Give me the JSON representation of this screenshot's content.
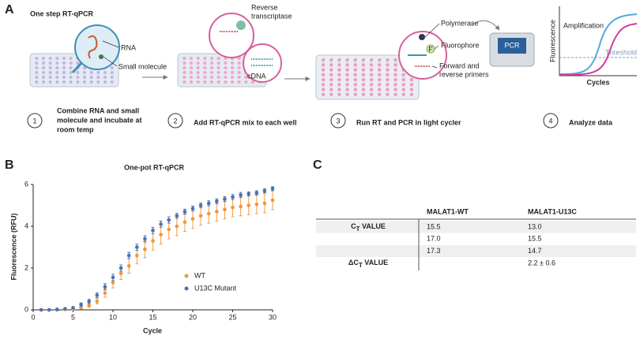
{
  "panel_a": {
    "label": "A",
    "title": "One step RT-qPCR",
    "step1": {
      "number": "1",
      "lines": [
        "Combine RNA and small",
        "molecule and incubate at",
        "room temp"
      ],
      "callouts": [
        "RNA",
        "Small molecule"
      ]
    },
    "step2": {
      "number": "2",
      "text": "Add RT-qPCR mix to each well",
      "callouts": [
        [
          "Reverse",
          "transcriptase"
        ],
        "cDNA"
      ]
    },
    "step3": {
      "number": "3",
      "text": "Run RT and PCR in light cycler",
      "callouts": [
        "Polymerase",
        "Fluorophore",
        [
          "Forward and",
          "reverse primers"
        ]
      ],
      "fluorophore_mark": "F",
      "machine": "PCR"
    },
    "step4": {
      "number": "4",
      "text": "Analyze data",
      "curve_labels": [
        "Amplification",
        "Threshold"
      ],
      "axis_y": "Fluorescence",
      "axis_x": "Cycles"
    }
  },
  "chart_data": {
    "panel_label": "B",
    "type": "scatter",
    "title": "One-pot RT-qPCR",
    "x_label": "Cycle",
    "y_label": "Fluorescence (RFU)",
    "x": [
      1,
      2,
      3,
      4,
      5,
      6,
      7,
      8,
      9,
      10,
      11,
      12,
      13,
      14,
      15,
      16,
      17,
      18,
      19,
      20,
      21,
      22,
      23,
      24,
      25,
      26,
      27,
      28,
      29,
      30
    ],
    "series": [
      {
        "name": "WT",
        "color": "#f0953a",
        "values": [
          0,
          0,
          0,
          0.02,
          0.05,
          0.1,
          0.2,
          0.4,
          0.8,
          1.3,
          1.75,
          2.1,
          2.6,
          2.9,
          3.3,
          3.6,
          3.85,
          4.0,
          4.2,
          4.35,
          4.5,
          4.6,
          4.7,
          4.8,
          4.9,
          4.95,
          5.0,
          5.05,
          5.1,
          5.25
        ],
        "errors": [
          0,
          0,
          0,
          0.02,
          0.03,
          0.05,
          0.08,
          0.12,
          0.2,
          0.25,
          0.3,
          0.35,
          0.4,
          0.4,
          0.45,
          0.45,
          0.45,
          0.45,
          0.45,
          0.45,
          0.45,
          0.45,
          0.45,
          0.45,
          0.45,
          0.45,
          0.45,
          0.45,
          0.45,
          0.45
        ]
      },
      {
        "name": "U13C Mutant",
        "color": "#4a6fb5",
        "values": [
          0,
          0,
          0.02,
          0.05,
          0.1,
          0.25,
          0.4,
          0.7,
          1.1,
          1.55,
          2.0,
          2.6,
          3.0,
          3.4,
          3.8,
          4.1,
          4.3,
          4.5,
          4.7,
          4.85,
          5.0,
          5.1,
          5.2,
          5.3,
          5.4,
          5.5,
          5.55,
          5.6,
          5.7,
          5.8
        ],
        "errors": [
          0,
          0,
          0.02,
          0.03,
          0.05,
          0.08,
          0.1,
          0.12,
          0.15,
          0.15,
          0.15,
          0.15,
          0.15,
          0.15,
          0.15,
          0.15,
          0.15,
          0.12,
          0.12,
          0.12,
          0.12,
          0.12,
          0.12,
          0.12,
          0.12,
          0.12,
          0.1,
          0.1,
          0.1,
          0.1
        ]
      }
    ],
    "xlim": [
      0,
      30
    ],
    "xticks": [
      0,
      5,
      10,
      15,
      20,
      25,
      30
    ],
    "ylim": [
      0,
      6
    ],
    "yticks": [
      0,
      2,
      4,
      6
    ]
  },
  "table": {
    "panel_label": "C",
    "columns": [
      "MALAT1-WT",
      "MALAT1-U13C"
    ],
    "rows": [
      {
        "label": {
          "prefix": "C",
          "sub": "T",
          "suffix": " VALUE"
        },
        "wt": "15.5",
        "u13c": "13.0"
      },
      {
        "wt": "17.0",
        "u13c": "15.5"
      },
      {
        "wt": "17.3",
        "u13c": "14.7"
      },
      {
        "label": {
          "prefix": "ΔC",
          "sub": "T",
          "suffix": " VALUE"
        },
        "u13c": "2.2 ± 0.6"
      }
    ]
  }
}
